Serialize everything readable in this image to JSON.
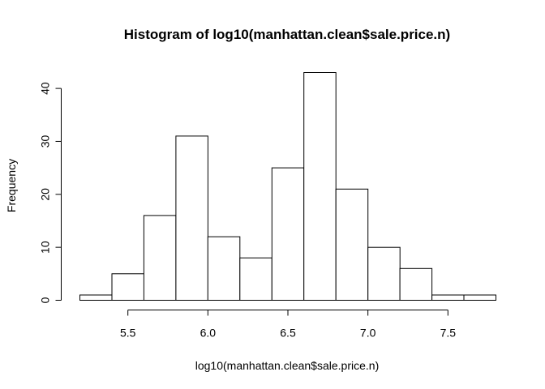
{
  "chart_data": {
    "type": "bar",
    "title": "Histogram of log10(manhattan.clean$sale.price.n)",
    "xlabel": "log10(manhattan.clean$sale.price.n)",
    "ylabel": "Frequency",
    "bins": [
      {
        "start": 5.2,
        "end": 5.4,
        "count": 1
      },
      {
        "start": 5.4,
        "end": 5.6,
        "count": 5
      },
      {
        "start": 5.6,
        "end": 5.8,
        "count": 16
      },
      {
        "start": 5.8,
        "end": 6.0,
        "count": 31
      },
      {
        "start": 6.0,
        "end": 6.2,
        "count": 12
      },
      {
        "start": 6.2,
        "end": 6.4,
        "count": 8
      },
      {
        "start": 6.4,
        "end": 6.6,
        "count": 25
      },
      {
        "start": 6.6,
        "end": 6.8,
        "count": 43
      },
      {
        "start": 6.8,
        "end": 7.0,
        "count": 21
      },
      {
        "start": 7.0,
        "end": 7.2,
        "count": 10
      },
      {
        "start": 7.2,
        "end": 7.4,
        "count": 6
      },
      {
        "start": 7.4,
        "end": 7.6,
        "count": 1
      },
      {
        "start": 7.6,
        "end": 7.8,
        "count": 1
      }
    ],
    "xlim": [
      5.2,
      7.8
    ],
    "ylim": [
      0,
      43
    ],
    "xticks": [
      5.5,
      6.0,
      6.5,
      7.0,
      7.5
    ],
    "xtick_labels": [
      "5.5",
      "6.0",
      "6.5",
      "7.0",
      "7.5"
    ],
    "yticks": [
      0,
      10,
      20,
      30,
      40
    ],
    "ytick_labels": [
      "0",
      "10",
      "20",
      "30",
      "40"
    ],
    "grid": false,
    "legend": "none",
    "colors": {
      "bar_fill": "#ffffff",
      "bar_stroke": "#000000",
      "text": "#000000"
    }
  }
}
